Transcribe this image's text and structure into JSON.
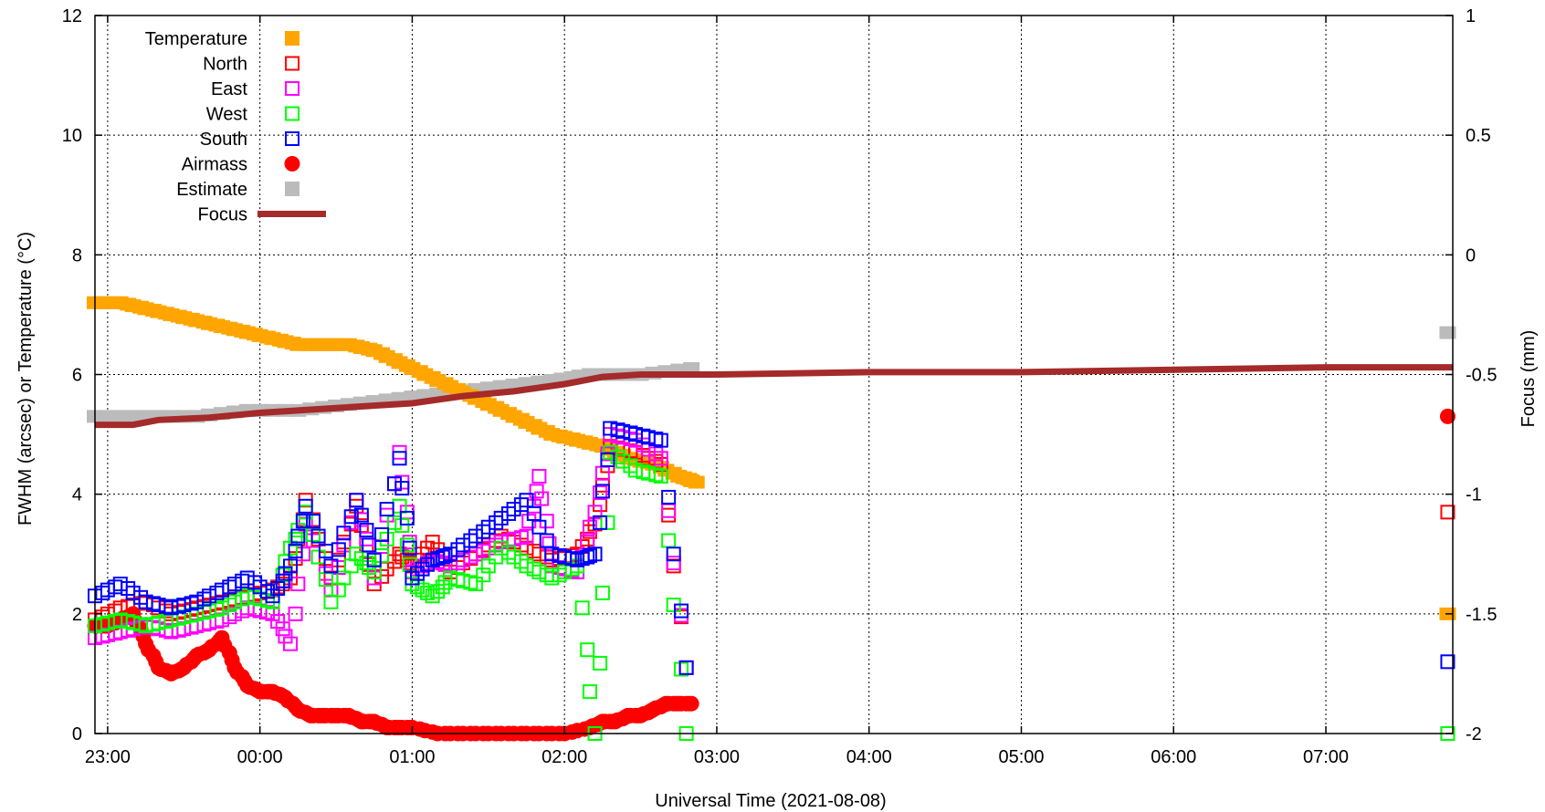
{
  "chart_data": {
    "type": "scatter",
    "xlabel": "Universal Time (2021-08-08)",
    "ylabel": "FWHM (arcsec) or Temperature (°C)",
    "y2label": "Focus (mm)",
    "xlim": [
      "22:55",
      "07:50"
    ],
    "ylim": [
      0,
      12
    ],
    "y2lim": [
      -2,
      1
    ],
    "x_ticks": [
      "23:00",
      "00:00",
      "01:00",
      "02:00",
      "03:00",
      "04:00",
      "05:00",
      "06:00",
      "07:00"
    ],
    "y_ticks": [
      "0",
      "2",
      "4",
      "6",
      "8",
      "10",
      "12"
    ],
    "y2_ticks": [
      "-2",
      "-1.5",
      "-1",
      "-0.5",
      "0",
      "0.5",
      "1"
    ],
    "grid": true,
    "legend_position": "top-left",
    "legend": [
      {
        "label": "Temperature",
        "color": "#ffa500",
        "marker": "square-filled"
      },
      {
        "label": "North",
        "color": "#ff0000",
        "marker": "square-open"
      },
      {
        "label": "East",
        "color": "#ff00ff",
        "marker": "square-open"
      },
      {
        "label": "West",
        "color": "#00ff00",
        "marker": "square-open"
      },
      {
        "label": "South",
        "color": "#0000ff",
        "marker": "square-open"
      },
      {
        "label": "Airmass",
        "color": "#ff0000",
        "marker": "circle-filled"
      },
      {
        "label": "Estimate",
        "color": "#bbbbbb",
        "marker": "square-filled"
      },
      {
        "label": "Focus",
        "color": "#a52a2a",
        "marker": "line"
      }
    ],
    "series": [
      {
        "name": "Temperature",
        "axis": "y",
        "points": [
          [
            "22:55",
            7.2
          ],
          [
            "23:05",
            7.2
          ],
          [
            "23:15",
            7.1
          ],
          [
            "23:25",
            7.0
          ],
          [
            "23:35",
            6.9
          ],
          [
            "23:45",
            6.8
          ],
          [
            "23:55",
            6.7
          ],
          [
            "00:05",
            6.6
          ],
          [
            "00:15",
            6.5
          ],
          [
            "00:25",
            6.5
          ],
          [
            "00:35",
            6.5
          ],
          [
            "00:45",
            6.4
          ],
          [
            "00:55",
            6.2
          ],
          [
            "01:05",
            6.0
          ],
          [
            "01:15",
            5.8
          ],
          [
            "01:25",
            5.6
          ],
          [
            "01:35",
            5.4
          ],
          [
            "01:45",
            5.2
          ],
          [
            "01:55",
            5.0
          ],
          [
            "02:05",
            4.9
          ],
          [
            "02:15",
            4.8
          ],
          [
            "02:25",
            4.6
          ],
          [
            "02:35",
            4.5
          ],
          [
            "02:45",
            4.3
          ],
          [
            "02:52",
            4.2
          ],
          [
            "07:48",
            2.0
          ]
        ]
      },
      {
        "name": "North",
        "axis": "y",
        "points": [
          [
            "22:55",
            1.9
          ],
          [
            "23:05",
            2.1
          ],
          [
            "23:15",
            2.2
          ],
          [
            "23:25",
            2.0
          ],
          [
            "23:35",
            2.1
          ],
          [
            "23:45",
            2.2
          ],
          [
            "23:55",
            2.3
          ],
          [
            "00:05",
            2.4
          ],
          [
            "00:12",
            2.6
          ],
          [
            "00:18",
            3.9
          ],
          [
            "00:28",
            2.6
          ],
          [
            "00:38",
            3.8
          ],
          [
            "00:45",
            2.5
          ],
          [
            "00:55",
            3.0
          ],
          [
            "01:00",
            2.8
          ],
          [
            "01:08",
            3.2
          ],
          [
            "01:15",
            2.7
          ],
          [
            "01:25",
            3.0
          ],
          [
            "01:35",
            3.3
          ],
          [
            "01:45",
            3.1
          ],
          [
            "01:55",
            2.9
          ],
          [
            "02:05",
            3.0
          ],
          [
            "02:12",
            3.5
          ],
          [
            "02:18",
            4.8
          ],
          [
            "02:28",
            4.7
          ],
          [
            "02:38",
            4.5
          ],
          [
            "02:48",
            1.1
          ],
          [
            "07:48",
            3.7
          ]
        ]
      },
      {
        "name": "East",
        "axis": "y",
        "points": [
          [
            "22:55",
            1.6
          ],
          [
            "23:05",
            1.7
          ],
          [
            "23:15",
            1.8
          ],
          [
            "23:25",
            1.7
          ],
          [
            "23:35",
            1.8
          ],
          [
            "23:45",
            1.9
          ],
          [
            "23:55",
            2.1
          ],
          [
            "00:05",
            2.0
          ],
          [
            "00:12",
            1.5
          ],
          [
            "00:18",
            3.5
          ],
          [
            "00:28",
            2.4
          ],
          [
            "00:38",
            3.9
          ],
          [
            "00:45",
            2.6
          ],
          [
            "00:55",
            4.7
          ],
          [
            "01:00",
            2.7
          ],
          [
            "01:08",
            2.9
          ],
          [
            "01:15",
            2.8
          ],
          [
            "01:25",
            3.0
          ],
          [
            "01:35",
            3.2
          ],
          [
            "01:45",
            3.3
          ],
          [
            "01:50",
            4.3
          ],
          [
            "01:55",
            2.8
          ],
          [
            "02:05",
            2.7
          ],
          [
            "02:12",
            3.7
          ],
          [
            "02:18",
            5.0
          ],
          [
            "02:28",
            4.9
          ],
          [
            "02:38",
            4.6
          ],
          [
            "02:48",
            1.1
          ],
          [
            "07:48",
            0.0
          ]
        ]
      },
      {
        "name": "West",
        "axis": "y",
        "points": [
          [
            "22:55",
            1.8
          ],
          [
            "23:05",
            1.9
          ],
          [
            "23:15",
            1.8
          ],
          [
            "23:25",
            1.9
          ],
          [
            "23:35",
            2.0
          ],
          [
            "23:45",
            2.1
          ],
          [
            "23:55",
            2.3
          ],
          [
            "00:05",
            2.2
          ],
          [
            "00:12",
            3.1
          ],
          [
            "00:18",
            3.7
          ],
          [
            "00:28",
            2.2
          ],
          [
            "00:38",
            3.0
          ],
          [
            "00:45",
            2.7
          ],
          [
            "00:55",
            3.8
          ],
          [
            "01:00",
            2.5
          ],
          [
            "01:08",
            2.3
          ],
          [
            "01:15",
            2.6
          ],
          [
            "01:25",
            2.5
          ],
          [
            "01:35",
            3.1
          ],
          [
            "01:45",
            2.8
          ],
          [
            "01:55",
            2.6
          ],
          [
            "02:05",
            2.8
          ],
          [
            "02:12",
            0.0
          ],
          [
            "02:18",
            4.7
          ],
          [
            "02:28",
            4.4
          ],
          [
            "02:38",
            4.3
          ],
          [
            "02:48",
            0.0
          ],
          [
            "07:48",
            0.0
          ]
        ]
      },
      {
        "name": "South",
        "axis": "y",
        "points": [
          [
            "22:55",
            2.3
          ],
          [
            "23:05",
            2.5
          ],
          [
            "23:15",
            2.2
          ],
          [
            "23:25",
            2.1
          ],
          [
            "23:35",
            2.2
          ],
          [
            "23:45",
            2.4
          ],
          [
            "23:55",
            2.6
          ],
          [
            "00:05",
            2.3
          ],
          [
            "00:12",
            2.8
          ],
          [
            "00:18",
            3.8
          ],
          [
            "00:28",
            2.8
          ],
          [
            "00:38",
            3.9
          ],
          [
            "00:45",
            2.9
          ],
          [
            "00:55",
            4.6
          ],
          [
            "01:00",
            2.6
          ],
          [
            "01:08",
            2.9
          ],
          [
            "01:15",
            3.0
          ],
          [
            "01:25",
            3.3
          ],
          [
            "01:35",
            3.6
          ],
          [
            "01:45",
            3.9
          ],
          [
            "01:55",
            3.0
          ],
          [
            "02:05",
            2.9
          ],
          [
            "02:12",
            3.0
          ],
          [
            "02:18",
            5.1
          ],
          [
            "02:28",
            5.0
          ],
          [
            "02:38",
            4.9
          ],
          [
            "02:48",
            1.1
          ],
          [
            "07:48",
            1.2
          ]
        ]
      },
      {
        "name": "Airmass",
        "axis": "y",
        "points": [
          [
            "22:55",
            1.8
          ],
          [
            "23:00",
            1.8
          ],
          [
            "23:05",
            1.9
          ],
          [
            "23:10",
            2.0
          ],
          [
            "23:15",
            1.5
          ],
          [
            "23:20",
            1.1
          ],
          [
            "23:25",
            1.0
          ],
          [
            "23:30",
            1.1
          ],
          [
            "23:35",
            1.3
          ],
          [
            "23:40",
            1.4
          ],
          [
            "23:45",
            1.6
          ],
          [
            "23:50",
            1.1
          ],
          [
            "23:55",
            0.8
          ],
          [
            "00:00",
            0.7
          ],
          [
            "00:05",
            0.7
          ],
          [
            "00:10",
            0.6
          ],
          [
            "00:15",
            0.4
          ],
          [
            "00:20",
            0.3
          ],
          [
            "00:25",
            0.3
          ],
          [
            "00:30",
            0.3
          ],
          [
            "00:35",
            0.3
          ],
          [
            "00:40",
            0.2
          ],
          [
            "00:45",
            0.2
          ],
          [
            "00:50",
            0.1
          ],
          [
            "00:55",
            0.1
          ],
          [
            "01:00",
            0.1
          ],
          [
            "01:10",
            0.0
          ],
          [
            "01:20",
            0.0
          ],
          [
            "01:30",
            0.0
          ],
          [
            "01:40",
            0.0
          ],
          [
            "01:50",
            0.0
          ],
          [
            "02:00",
            0.0
          ],
          [
            "02:10",
            0.1
          ],
          [
            "02:15",
            0.2
          ],
          [
            "02:20",
            0.2
          ],
          [
            "02:25",
            0.3
          ],
          [
            "02:30",
            0.3
          ],
          [
            "02:35",
            0.4
          ],
          [
            "02:40",
            0.5
          ],
          [
            "02:45",
            0.5
          ],
          [
            "02:50",
            0.5
          ],
          [
            "07:48",
            5.3
          ]
        ]
      },
      {
        "name": "Estimate",
        "axis": "y",
        "points": [
          [
            "22:55",
            5.3
          ],
          [
            "23:15",
            5.3
          ],
          [
            "23:35",
            5.3
          ],
          [
            "23:55",
            5.4
          ],
          [
            "00:15",
            5.4
          ],
          [
            "00:35",
            5.5
          ],
          [
            "00:55",
            5.6
          ],
          [
            "01:15",
            5.7
          ],
          [
            "01:35",
            5.8
          ],
          [
            "01:55",
            5.9
          ],
          [
            "02:10",
            6.0
          ],
          [
            "02:30",
            6.0
          ],
          [
            "02:50",
            6.1
          ],
          [
            "07:48",
            6.7
          ]
        ]
      },
      {
        "name": "Focus",
        "axis": "y2",
        "points": [
          [
            "22:55",
            -0.71
          ],
          [
            "23:10",
            -0.71
          ],
          [
            "23:20",
            -0.69
          ],
          [
            "23:40",
            -0.68
          ],
          [
            "00:00",
            -0.66
          ],
          [
            "00:30",
            -0.64
          ],
          [
            "01:00",
            -0.62
          ],
          [
            "01:20",
            -0.59
          ],
          [
            "01:40",
            -0.57
          ],
          [
            "02:00",
            -0.54
          ],
          [
            "02:15",
            -0.51
          ],
          [
            "02:30",
            -0.5
          ],
          [
            "03:00",
            -0.5
          ],
          [
            "04:00",
            -0.49
          ],
          [
            "05:00",
            -0.49
          ],
          [
            "06:00",
            -0.48
          ],
          [
            "07:00",
            -0.47
          ],
          [
            "07:50",
            -0.47
          ]
        ]
      }
    ]
  }
}
